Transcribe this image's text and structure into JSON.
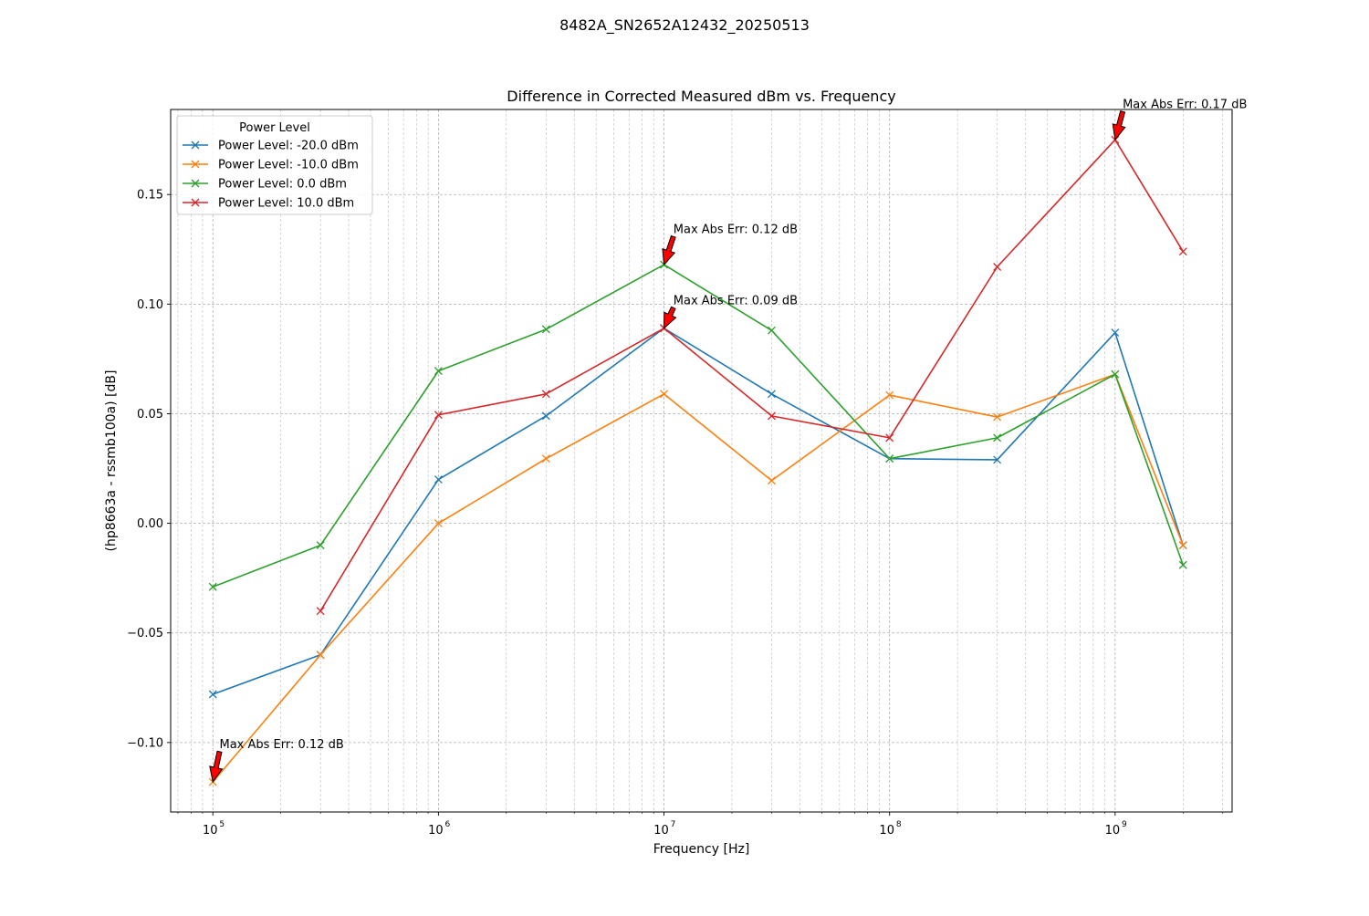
{
  "chart_data": {
    "type": "line",
    "suptitle": "8482A_SN2652A12432_20250513",
    "title": "Difference in Corrected Measured dBm vs. Frequency",
    "xlabel": "Frequency [Hz]",
    "ylabel": "(hp8663a - rssmb100a) [dB]",
    "xscale": "log",
    "xlim": [
      65000,
      3300000000
    ],
    "ylim": [
      -0.1317,
      0.1888
    ],
    "x_major_ticks": [
      {
        "value": 100000,
        "base": "10",
        "exp": "5"
      },
      {
        "value": 1000000,
        "base": "10",
        "exp": "6"
      },
      {
        "value": 10000000,
        "base": "10",
        "exp": "7"
      },
      {
        "value": 100000000,
        "base": "10",
        "exp": "8"
      },
      {
        "value": 1000000000,
        "base": "10",
        "exp": "9"
      }
    ],
    "y_ticks": [
      {
        "value": -0.1,
        "label": "−0.10"
      },
      {
        "value": -0.05,
        "label": "−0.05"
      },
      {
        "value": 0.0,
        "label": "0.00"
      },
      {
        "value": 0.05,
        "label": "0.05"
      },
      {
        "value": 0.1,
        "label": "0.10"
      },
      {
        "value": 0.15,
        "label": "0.15"
      }
    ],
    "grid": true,
    "legend": {
      "title": "Power Level",
      "placement": "upper left"
    },
    "x": [
      100000,
      300000,
      1000000,
      3000000,
      10000000,
      30000000,
      100000000,
      300000000,
      1000000000,
      2000000000
    ],
    "series": [
      {
        "name": "Power Level: -20.0 dBm",
        "color": "#1f77b4",
        "values": [
          -0.078,
          -0.06,
          0.02,
          0.049,
          0.089,
          0.059,
          0.0295,
          0.029,
          0.087,
          -0.01
        ]
      },
      {
        "name": "Power Level: -10.0 dBm",
        "color": "#ff7f0e",
        "values": [
          -0.118,
          -0.06,
          0.0,
          0.0295,
          0.059,
          0.0195,
          0.0585,
          0.0485,
          0.068,
          -0.01
        ]
      },
      {
        "name": "Power Level: 0.0 dBm",
        "color": "#2ca02c",
        "values": [
          -0.029,
          -0.01,
          0.0695,
          0.0885,
          0.118,
          0.088,
          0.0295,
          0.039,
          0.068,
          -0.019
        ]
      },
      {
        "name": "Power Level: 10.0 dBm",
        "color": "#d62728",
        "values": [
          null,
          -0.04,
          0.0495,
          0.059,
          0.089,
          0.049,
          0.039,
          0.117,
          0.175,
          0.124
        ]
      }
    ],
    "annotations": [
      {
        "text": "Max Abs Err: 0.12 dB",
        "x": 100000,
        "y": -0.118,
        "tx": 107000,
        "ty": -0.1025
      },
      {
        "text": "Max Abs Err: 0.12 dB",
        "x": 10000000,
        "y": 0.118,
        "tx": 11000000,
        "ty": 0.1325
      },
      {
        "text": "Max Abs Err: 0.09 dB",
        "x": 10000000,
        "y": 0.089,
        "tx": 11000000,
        "ty": 0.1
      },
      {
        "text": "Max Abs Err: 0.17 dB",
        "x": 1000000000,
        "y": 0.175,
        "tx": 1080000000,
        "ty": 0.1895
      }
    ],
    "annotation_arrow_color": "#ff0000"
  }
}
